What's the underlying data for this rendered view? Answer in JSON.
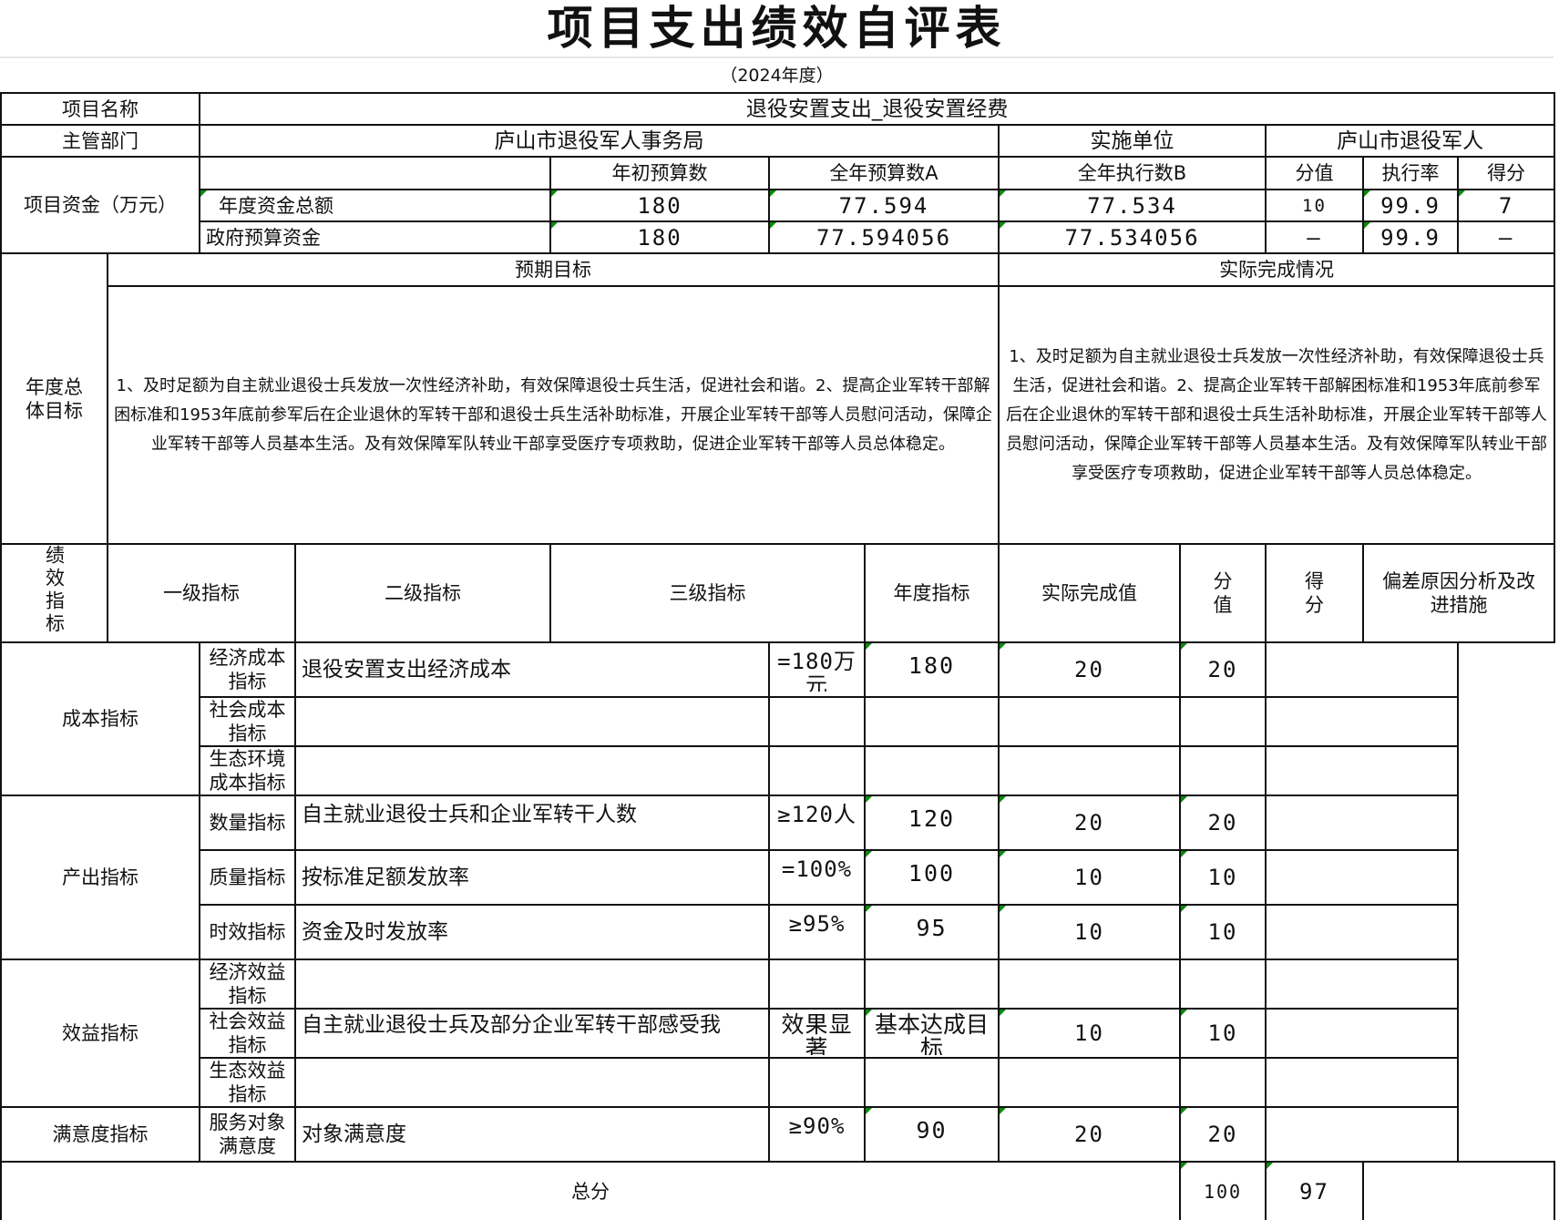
{
  "title": "项目支出绩效自评表",
  "subtitle": "（2024年度）",
  "project": {
    "name_label": "项目名称",
    "name_value": "退役安置支出_退役安置经费",
    "dept_label": "主管部门",
    "dept_value": "庐山市退役军人事务局",
    "impl_label": "实施单位",
    "impl_value": "庐山市退役军人"
  },
  "funds": {
    "label": "项目资金（万元）",
    "headers": [
      "年初预算数",
      "全年预算数A",
      "全年执行数B",
      "分值",
      "执行率",
      "得分"
    ],
    "rows": [
      {
        "label": "年度资金总额",
        "initial": "180",
        "budget_a": "77.594",
        "exec_b": "77.534",
        "score_value": "10",
        "rate": "99.9",
        "score": "7"
      },
      {
        "label": "政府预算资金",
        "initial": "180",
        "budget_a": "77.594056",
        "exec_b": "77.534056",
        "score_value": "—",
        "rate": "99.9",
        "score": "—"
      }
    ]
  },
  "goals": {
    "label": "年度总体目标",
    "expected_header": "预期目标",
    "actual_header": "实际完成情况",
    "expected_text": "1、及时足额为自主就业退役士兵发放一次性经济补助，有效保障退役士兵生活，促进社会和谐。2、提高企业军转干部解困标准和1953年底前参军后在企业退休的军转干部和退役士兵生活补助标准，开展企业军转干部等人员慰问活动，保障企业军转干部等人员基本生活。及有效保障军队转业干部享受医疗专项救助，促进企业军转干部等人员总体稳定。",
    "actual_text": "1、及时足额为自主就业退役士兵发放一次性经济补助，有效保障退役士兵生活，促进社会和谐。2、提高企业军转干部解困标准和1953年底前参军后在企业退休的军转干部和退役士兵生活补助标准，开展企业军转干部等人员慰问活动，保障企业军转干部等人员基本生活。及有效保障军队转业干部享受医疗专项救助，促进企业军转干部等人员总体稳定。"
  },
  "performance": {
    "label": "绩效指标",
    "headers": [
      "一级指标",
      "二级指标",
      "三级指标",
      "年度指标",
      "实际完成值",
      "分值",
      "得分",
      "偏差原因分析及改进措施"
    ],
    "groups": [
      "成本指标",
      "产出指标",
      "效益指标",
      "满意度指标"
    ],
    "rows": [
      {
        "level2": "经济成本指标",
        "level3": "退役安置支出经济成本",
        "target": "=180万元",
        "actual": "180",
        "value": "20",
        "score": "20"
      },
      {
        "level2": "社会成本指标",
        "level3": "",
        "target": "",
        "actual": "",
        "value": "",
        "score": ""
      },
      {
        "level2": "生态环境成本指标",
        "level3": "",
        "target": "",
        "actual": "",
        "value": "",
        "score": ""
      },
      {
        "level2": "数量指标",
        "level3": "自主就业退役士兵和企业军转干人数",
        "target": "≥120人",
        "actual": "120",
        "value": "20",
        "score": "20"
      },
      {
        "level2": "质量指标",
        "level3": "按标准足额发放率",
        "target": "=100%",
        "actual": "100",
        "value": "10",
        "score": "10"
      },
      {
        "level2": "时效指标",
        "level3": "资金及时发放率",
        "target": "≥95%",
        "actual": "95",
        "value": "10",
        "score": "10"
      },
      {
        "level2": "经济效益指标",
        "level3": "",
        "target": "",
        "actual": "",
        "value": "",
        "score": ""
      },
      {
        "level2": "社会效益指标",
        "level3": "自主就业退役士兵及部分企业军转干部感受我",
        "target": "效果显著",
        "actual": "基本达成目标",
        "value": "10",
        "score": "10"
      },
      {
        "level2": "生态效益指标",
        "level3": "",
        "target": "",
        "actual": "",
        "value": "",
        "score": ""
      },
      {
        "level2": "服务对象满意度",
        "level3": "对象满意度",
        "target": "≥90%",
        "actual": "90",
        "value": "20",
        "score": "20"
      }
    ],
    "total_label": "总分",
    "total_value": "100",
    "total_score": "97"
  },
  "colors": {
    "border": "#111111",
    "flag": "#0a8a0a"
  }
}
